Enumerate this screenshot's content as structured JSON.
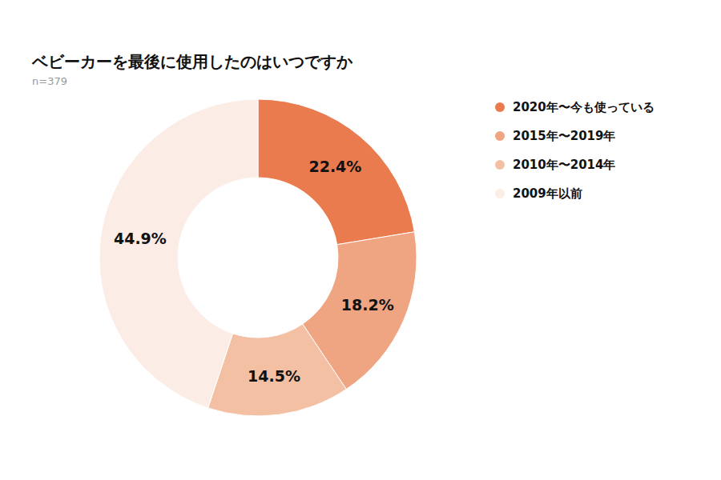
{
  "chart_data": {
    "type": "donut",
    "title": "ベビーカーを最後に使用したのはいつですか",
    "subtitle": "n=379",
    "categories": [
      "2020年〜今も使っている",
      "2015年〜2019年",
      "2010年〜2014年",
      "2009年以前"
    ],
    "values": [
      22.4,
      18.2,
      14.5,
      44.9
    ],
    "value_labels": [
      "22.4%",
      "18.2%",
      "14.5%",
      "44.9%"
    ],
    "colors": [
      "#e97b4f",
      "#efa482",
      "#f3c0a4",
      "#fbece6"
    ],
    "data_labels": true,
    "legend": "top-right"
  }
}
